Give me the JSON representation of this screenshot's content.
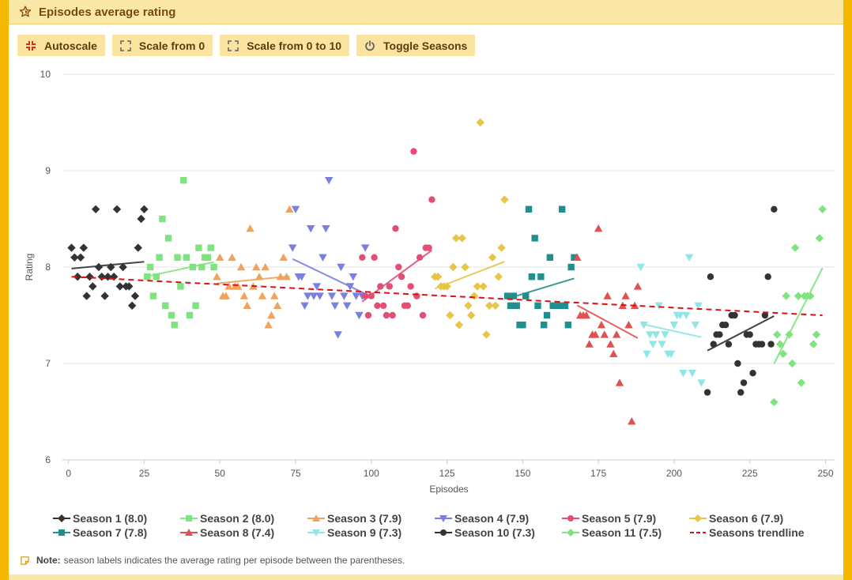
{
  "header": {
    "title": "Episodes average rating"
  },
  "toolbar": {
    "buttons": [
      {
        "label": "Autoscale",
        "icon": "compress-icon"
      },
      {
        "label": "Scale from 0",
        "icon": "expand-icon"
      },
      {
        "label": "Scale from 0 to 10",
        "icon": "expand-icon"
      },
      {
        "label": "Toggle Seasons",
        "icon": "power-icon"
      }
    ]
  },
  "note": {
    "label": "Note:",
    "text": "season labels indicates the average rating per episode between the parentheses."
  },
  "chart_data": {
    "type": "scatter",
    "xlabel": "Episodes",
    "ylabel": "Rating",
    "xlim": [
      -2,
      253
    ],
    "ylim": [
      6,
      10
    ],
    "xticks": [
      0,
      25,
      50,
      75,
      100,
      125,
      150,
      175,
      200,
      225,
      250
    ],
    "yticks": [
      6,
      7,
      8,
      9,
      10
    ],
    "grid": true,
    "legend_position": "bottom",
    "series": [
      {
        "name": "Season 1 (8.0)",
        "color": "#333333",
        "marker": "diamond",
        "x_start": 1,
        "values": [
          8.2,
          8.1,
          7.9,
          8.1,
          8.2,
          7.7,
          7.9,
          7.8,
          8.6,
          8.0,
          7.9,
          7.7,
          7.9,
          8.0,
          7.9,
          8.6,
          7.8,
          8.0,
          7.8,
          7.8,
          7.6,
          7.7,
          8.2,
          8.5,
          8.6
        ]
      },
      {
        "name": "Season 2 (8.0)",
        "color": "#7fe47f",
        "marker": "square",
        "x_start": 26,
        "values": [
          7.9,
          8.0,
          7.7,
          7.9,
          8.1,
          8.5,
          7.6,
          8.3,
          7.5,
          7.4,
          8.1,
          7.8,
          8.9,
          8.1,
          7.5,
          8.0,
          7.6,
          8.2,
          8.0,
          8.1,
          8.1,
          8.2,
          8.0
        ]
      },
      {
        "name": "Season 3 (7.9)",
        "color": "#f0a35e",
        "marker": "triangle-up",
        "x_start": 49,
        "values": [
          7.9,
          8.1,
          7.7,
          7.7,
          7.8,
          8.1,
          7.8,
          7.8,
          8.0,
          7.7,
          7.6,
          8.4,
          7.8,
          8.0,
          7.9,
          7.7,
          8.0,
          7.4,
          7.5,
          7.7,
          7.6,
          7.9,
          8.1,
          7.9,
          8.6
        ]
      },
      {
        "name": "Season 4 (7.9)",
        "color": "#7b7fe0",
        "marker": "triangle-down",
        "x_start": 74,
        "values": [
          8.2,
          8.6,
          7.9,
          7.9,
          7.6,
          7.7,
          8.4,
          7.7,
          7.8,
          7.7,
          8.1,
          8.4,
          8.9,
          7.7,
          7.6,
          7.3,
          8.0,
          7.7,
          7.6,
          7.8,
          7.9,
          7.7,
          7.5,
          7.7,
          8.2
        ]
      },
      {
        "name": "Season 5 (7.9)",
        "color": "#e34e74",
        "marker": "circle",
        "x_start": 97,
        "values": [
          8.1,
          7.7,
          7.5,
          7.7,
          8.1,
          7.6,
          7.8,
          7.6,
          7.5,
          7.8,
          7.5,
          8.4,
          8.0,
          7.9,
          7.6,
          7.6,
          7.8,
          9.2,
          7.7,
          8.1,
          7.5,
          8.2,
          8.2,
          8.7
        ]
      },
      {
        "name": "Season 6 (7.9)",
        "color": "#e6c547",
        "marker": "diamond",
        "x_start": 121,
        "values": [
          7.9,
          7.9,
          7.8,
          7.8,
          7.8,
          7.5,
          8.0,
          8.3,
          7.4,
          8.3,
          8.0,
          7.6,
          7.5,
          7.7,
          7.8,
          9.5,
          7.8,
          7.3,
          7.6,
          8.1,
          7.6,
          7.9,
          8.2,
          8.7
        ]
      },
      {
        "name": "Season 7 (7.8)",
        "color": "#20908f",
        "marker": "square",
        "x_start": 145,
        "values": [
          7.7,
          7.6,
          7.7,
          7.6,
          7.4,
          7.4,
          7.7,
          8.6,
          7.9,
          8.3,
          7.6,
          7.9,
          7.4,
          7.5,
          8.1,
          7.6,
          7.6,
          7.6,
          8.6,
          7.6,
          7.4,
          8.0,
          8.1
        ]
      },
      {
        "name": "Season 8 (7.4)",
        "color": "#e05252",
        "marker": "triangle-up",
        "x_start": 168,
        "values": [
          8.1,
          7.5,
          7.5,
          7.5,
          7.2,
          7.3,
          7.3,
          8.4,
          7.4,
          7.3,
          7.7,
          7.2,
          7.1,
          7.3,
          6.8,
          7.6,
          7.7,
          7.4,
          6.4,
          7.6,
          7.8
        ]
      },
      {
        "name": "Season 9 (7.3)",
        "color": "#8fe6e6",
        "marker": "triangle-down",
        "x_start": 189,
        "values": [
          8.0,
          7.4,
          7.1,
          7.3,
          7.2,
          7.3,
          7.6,
          7.2,
          7.3,
          7.1,
          7.1,
          7.4,
          7.5,
          7.5,
          6.9,
          7.5,
          8.1,
          6.9,
          7.4,
          7.6,
          6.8
        ]
      },
      {
        "name": "Season 10 (7.3)",
        "color": "#333333",
        "marker": "circle",
        "x_start": 211,
        "values": [
          6.7,
          7.9,
          7.2,
          7.3,
          7.3,
          7.4,
          7.4,
          7.2,
          7.5,
          7.5,
          7.0,
          6.7,
          6.8,
          7.3,
          7.3,
          6.9,
          7.2,
          7.2,
          7.2,
          7.5,
          7.9,
          7.2,
          8.6
        ]
      },
      {
        "name": "Season 11 (7.5)",
        "color": "#7fe47f",
        "marker": "diamond",
        "x_start": 233,
        "values": [
          6.6,
          7.3,
          7.2,
          7.1,
          7.7,
          7.3,
          7.0,
          8.2,
          7.7,
          6.8,
          7.7,
          7.7,
          7.7,
          7.2,
          7.3,
          8.3,
          8.6
        ]
      },
      {
        "name": "Seasons trendline",
        "color": "#dd1111",
        "marker": "dashed-line",
        "x": [
          1,
          249
        ],
        "values": [
          7.9,
          7.5
        ]
      }
    ]
  }
}
